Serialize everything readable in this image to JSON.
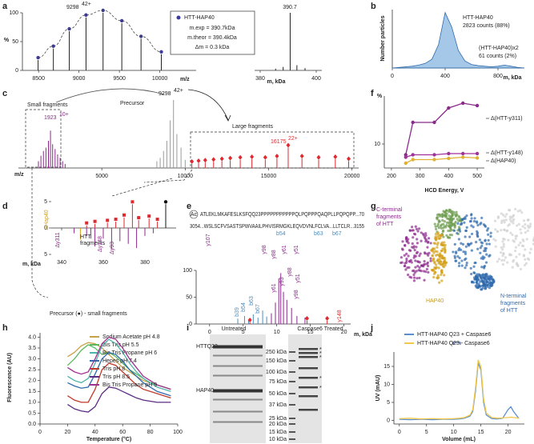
{
  "panel_labels": [
    "a",
    "b",
    "c",
    "d",
    "e",
    "f",
    "g",
    "h",
    "i",
    "j"
  ],
  "chart_data": [
    {
      "type": "stem",
      "xlabel": "m/z",
      "ylabel": "%",
      "xlim": [
        8300,
        10450
      ],
      "ylim": [
        0,
        100
      ],
      "xticks": [
        8500,
        9000,
        9500,
        10000
      ],
      "yticks": [
        0,
        50,
        100
      ],
      "envelope": true,
      "series": [
        {
          "name": "HTT-HAP40",
          "color": "#222222",
          "marker": "circle",
          "marker_color": "#3b3b9e",
          "x": [
            8494,
            8683,
            8880,
            9087,
            9298,
            9530,
            9768,
            10019
          ],
          "values": [
            18,
            38,
            68,
            92,
            100,
            82,
            55,
            28
          ]
        }
      ],
      "annotations": [
        "9298",
        "42+"
      ],
      "legend_lines": [
        "m.exp = 390.7kDa",
        "m.theor = 390.4kDa",
        "Δm = 0.3 kDa"
      ]
    },
    {
      "type": "stem",
      "xlabel": "m, kDa",
      "xlim": [
        378,
        402
      ],
      "ylim": [
        0,
        100
      ],
      "xticks": [
        380,
        400
      ],
      "series": [
        {
          "color": "#222222",
          "x": [
            385.5,
            388.2,
            390.7,
            393.1,
            396
          ],
          "values": [
            3,
            6,
            100,
            9,
            4
          ]
        }
      ],
      "annotations": [
        "390.7"
      ]
    },
    {
      "type": "area",
      "xlabel": "m, kDa",
      "ylabel": "Number particles",
      "xlim": [
        0,
        1000
      ],
      "ylim": [
        0,
        100
      ],
      "xticks": [
        0,
        400,
        800
      ],
      "color": "#5b9bd5",
      "x": [
        0,
        50,
        100,
        150,
        200,
        250,
        300,
        350,
        400,
        450,
        500,
        550,
        600,
        650,
        700,
        750,
        800,
        850,
        900,
        950,
        1000
      ],
      "values": [
        0,
        1,
        2,
        3,
        5,
        8,
        15,
        40,
        95,
        70,
        30,
        12,
        6,
        4,
        3,
        2,
        3,
        5,
        3,
        1,
        0
      ],
      "annotations": [
        "HTT-HAP40",
        "2823 counts (88%)",
        "(HTT-HAP40)x2",
        "61 counts (2%)"
      ]
    },
    {
      "type": "stem",
      "xlabel": "m/z",
      "xlim": [
        0,
        20400
      ],
      "ylim": [
        0,
        100
      ],
      "xticks": [
        5000,
        10000,
        15000,
        20000
      ],
      "series": [
        {
          "color": "#8b2a8b",
          "x": [
            1200,
            1350,
            1500,
            1650,
            1800,
            1923,
            2050,
            2200,
            2350,
            2500,
            2650,
            2800
          ],
          "values": [
            10,
            18,
            25,
            30,
            40,
            55,
            35,
            28,
            20,
            15,
            10,
            6
          ]
        },
        {
          "color": "#9a9a9a",
          "x": [
            8300,
            8500,
            8700,
            8900,
            9100,
            9298,
            9500,
            9750,
            10000
          ],
          "values": [
            10,
            15,
            25,
            40,
            70,
            100,
            50,
            30,
            12
          ]
        },
        {
          "color": "#e0292f",
          "marker": "diamond",
          "x": [
            10400,
            10800,
            11200,
            11700,
            12200,
            12700,
            13300,
            14000,
            14800,
            15500,
            16175,
            17000,
            18000,
            19000,
            19800
          ],
          "values": [
            6,
            7,
            8,
            9,
            10,
            11,
            12,
            13,
            12,
            14,
            30,
            14,
            12,
            13,
            10
          ]
        }
      ],
      "annotations": [
        "Small fragments",
        "1923",
        "10+",
        "Precursor",
        "9298",
        "42+",
        "Large fragments",
        "16175",
        "22+"
      ]
    },
    {
      "type": "line",
      "xlabel": "HCD Energy, V",
      "ylabel": "%",
      "xlim": [
        175,
        525
      ],
      "ylim": [
        0,
        30
      ],
      "xticks": [
        200,
        300,
        400,
        500
      ],
      "yticks": [
        10
      ],
      "x": [
        250,
        275,
        350,
        400,
        450,
        500
      ],
      "series": [
        {
          "name": "Δ(HTT-y311)",
          "color": "#8b2a8b",
          "marker": "circle",
          "values": [
            5.5,
            19,
            19,
            25,
            27,
            26
          ]
        },
        {
          "name": "Δ(HTT-y148)",
          "color": "#a0329a",
          "marker": "circle",
          "values": [
            4.5,
            5.5,
            5.5,
            6,
            6,
            6
          ]
        },
        {
          "name": "Δ(HAP40)",
          "color": "#e0b030",
          "marker": "circle",
          "values": [
            2,
            3.5,
            3.5,
            4,
            4.5,
            4.2
          ]
        }
      ]
    },
    {
      "type": "stem",
      "xlabel": "m, kDa",
      "xlim": [
        335,
        395
      ],
      "ylim": [
        -5,
        5
      ],
      "xticks": [
        340,
        360,
        380
      ],
      "yticks": [
        5,
        0,
        {
          "value": -5,
          "label": "5"
        }
      ],
      "series": [
        {
          "color": "#e0292f",
          "marker": "square",
          "x": [
            352,
            356,
            362,
            366,
            370,
            374,
            377,
            382,
            386
          ],
          "values": [
            0.5,
            0.8,
            1,
            1.2,
            2,
            4.5,
            1.5,
            1.8,
            1.2
          ]
        },
        {
          "color": "#8b2a8b",
          "x": [
            346,
            352,
            354,
            356,
            360,
            364,
            368,
            372,
            376,
            380,
            384
          ],
          "values": [
            -1,
            -1.5,
            -2,
            -3.5,
            -2,
            -4,
            -2.5,
            -3,
            -3.8,
            -1.5,
            -1
          ]
        },
        {
          "color": "#d4a017",
          "x": [
            349
          ],
          "values": [
            -2.2
          ]
        },
        {
          "color": "#111111",
          "marker": "circle",
          "x": [
            390
          ],
          "values": [
            4.5
          ]
        }
      ],
      "annotations": [
        "ΔHap40",
        "Δy311",
        "HTT",
        "fragments",
        "Δy148",
        "Δy93",
        "Precursor (●) - small fragments"
      ]
    },
    {
      "type": "stem",
      "xlabel": "m, kDa",
      "xlim": [
        -2,
        21
      ],
      "ylim": [
        0,
        100
      ],
      "xticks": [
        0,
        5,
        10,
        15,
        20
      ],
      "yticks": [
        0,
        50,
        100
      ],
      "series": [
        {
          "color": "#4a8ec0",
          "x": [
            4.2,
            5.2,
            5.8,
            6.5,
            7.2,
            7.9,
            8.5
          ],
          "values": [
            10,
            15,
            8,
            18,
            12,
            25,
            14
          ]
        },
        {
          "color": "#8b2a8b",
          "x": [
            9.2,
            9.8,
            10.3,
            10.6,
            11,
            11.5,
            12.2,
            13,
            14.2
          ],
          "values": [
            20,
            40,
            85,
            95,
            60,
            45,
            30,
            15,
            12
          ]
        },
        {
          "color": "#e0292f",
          "marker": "diamond",
          "x": [
            6,
            14.5,
            17.5
          ],
          "values": [
            3,
            6,
            6
          ]
        }
      ],
      "annotations": [
        "Ac",
        "ATLEKLMKAFESLKSFQQ23PPPPPPPPPPPQLPQPPPQAQPLLPQPQPP...70",
        "3054...WSLSCFVSASTSPWVAAILPHVISRMGKLEQVDVNLFCLVA...LLTCLR...3155",
        "b54",
        "b63",
        "b67",
        "y107",
        "y98",
        "y88",
        "y61",
        "y51",
        "b39",
        "b54",
        "b63",
        "b67",
        "y61",
        "y93",
        "y98",
        "y88",
        "y51",
        "y148"
      ]
    },
    {
      "type": "line",
      "xlabel": "Temperature (°C)",
      "ylabel": "Fluorescence (AU)",
      "xlim": [
        0,
        100
      ],
      "ylim": [
        0,
        4.2
      ],
      "xticks": [
        0,
        20,
        40,
        60,
        80,
        100
      ],
      "yticks": [
        {
          "value": 0,
          "label": "0.0"
        },
        0.5,
        {
          "value": 1,
          "label": "1.0"
        },
        1.5,
        {
          "value": 2,
          "label": "2.0"
        },
        2.5,
        {
          "value": 3,
          "label": "3.0"
        },
        3.5,
        {
          "value": 4,
          "label": "4.0"
        }
      ],
      "x": [
        20,
        25,
        30,
        35,
        40,
        45,
        50,
        55,
        60,
        65,
        70,
        75,
        80,
        85,
        90,
        95
      ],
      "series": [
        {
          "name": "Sodium Acetate pH 4.8",
          "color": "#c8a24a",
          "values": [
            3.1,
            3.3,
            3.6,
            3.75,
            3.7,
            3.5,
            3.2,
            2.9,
            2.6,
            2.4,
            2.2,
            2.0,
            1.9,
            1.8,
            1.7,
            1.6
          ]
        },
        {
          "name": "Bis Tris pH 5.5",
          "color": "#5db85d",
          "values": [
            2.7,
            3.0,
            3.4,
            3.65,
            3.5,
            3.2,
            3.3,
            3.1,
            2.8,
            2.5,
            2.3,
            2.1,
            1.9,
            1.8,
            1.7,
            1.6
          ]
        },
        {
          "name": "Bis Tris Propane pH 6",
          "color": "#4fb3a9",
          "values": [
            2.2,
            2.0,
            1.9,
            2.1,
            2.8,
            3.6,
            3.9,
            3.7,
            3.3,
            2.8,
            2.4,
            2.1,
            1.9,
            1.7,
            1.6,
            1.5
          ]
        },
        {
          "name": "Hepes pH 7.4",
          "color": "#2e6aad",
          "values": [
            1.9,
            1.75,
            1.65,
            1.7,
            2.3,
            3.0,
            3.3,
            3.2,
            2.9,
            2.5,
            2.2,
            1.9,
            1.7,
            1.5,
            1.4,
            1.3
          ]
        },
        {
          "name": "Tris pH 8",
          "color": "#c0392b",
          "values": [
            1.3,
            1.1,
            1.0,
            1.0,
            1.6,
            2.5,
            2.8,
            2.7,
            2.4,
            2.1,
            1.8,
            1.6,
            1.5,
            1.4,
            1.3,
            1.2
          ]
        },
        {
          "name": "Tris pH 8.5",
          "color": "#5b2c83",
          "values": [
            0.9,
            0.7,
            0.6,
            0.55,
            0.8,
            1.4,
            1.7,
            1.65,
            1.5,
            1.35,
            1.2,
            1.1,
            1.05,
            1.0,
            1.0,
            1.0
          ]
        },
        {
          "name": "Bis Tris Propane pH 9",
          "color": "#a0328f",
          "values": [
            2.6,
            2.4,
            2.3,
            2.4,
            3.0,
            3.7,
            4.0,
            3.9,
            3.5,
            3.0,
            2.6,
            2.2,
            2.0,
            1.8,
            1.7,
            1.6
          ]
        }
      ]
    },
    {
      "type": "line",
      "xlabel": "Volume (mL)",
      "ylabel": "UV (mAU)",
      "xlim": [
        -1,
        23
      ],
      "ylim": [
        -1,
        19
      ],
      "xticks": [
        0,
        5,
        10,
        15,
        20
      ],
      "yticks": [
        0,
        5,
        10,
        15
      ],
      "x": [
        0,
        2,
        4,
        6,
        8,
        10,
        11,
        12,
        13,
        13.5,
        14,
        14.5,
        15,
        15.5,
        16,
        17,
        18,
        19,
        20,
        20.5,
        21,
        22
      ],
      "series": [
        {
          "name": "HTT-HAP40 Q23 + Caspase6",
          "color": "#5b8fd0",
          "values": [
            0.3,
            0.2,
            0.3,
            0.2,
            0.3,
            0.3,
            0.4,
            0.6,
            1.2,
            2.5,
            8,
            16,
            14,
            5,
            1.5,
            0.5,
            0.4,
            0.6,
            3,
            3.8,
            2.5,
            0.5
          ]
        },
        {
          "name": "HTT-HAP40 Q23 - Caspase6",
          "color": "#f2c94c",
          "values": [
            0.5,
            0.6,
            0.4,
            0.5,
            0.4,
            0.5,
            0.6,
            0.8,
            1.5,
            3,
            9,
            16.8,
            15,
            6,
            2,
            0.8,
            0.6,
            0.7,
            0.8,
            0.9,
            0.8,
            0.6
          ]
        }
      ]
    }
  ],
  "panel_g": {
    "c_terminal_label": [
      "C-terminal",
      "fragments",
      "of HTT"
    ],
    "hap40_label": "HAP40",
    "n_terminal_label": [
      "N-terminal",
      "fragments",
      "of HTT"
    ]
  },
  "panel_i": {
    "lanes": [
      "Untreated",
      "Caspase6 Treated"
    ],
    "bands": [
      "HTTQ23",
      "HAP40"
    ],
    "marker_sizes": [
      "250 kDa",
      "150 kDa",
      "100 kDa",
      "75 kDa",
      "50 kDa",
      "37 kDa",
      "25 kDa",
      "20 kDa",
      "15 kDa",
      "10 kDa"
    ],
    "asterisk": "*"
  }
}
